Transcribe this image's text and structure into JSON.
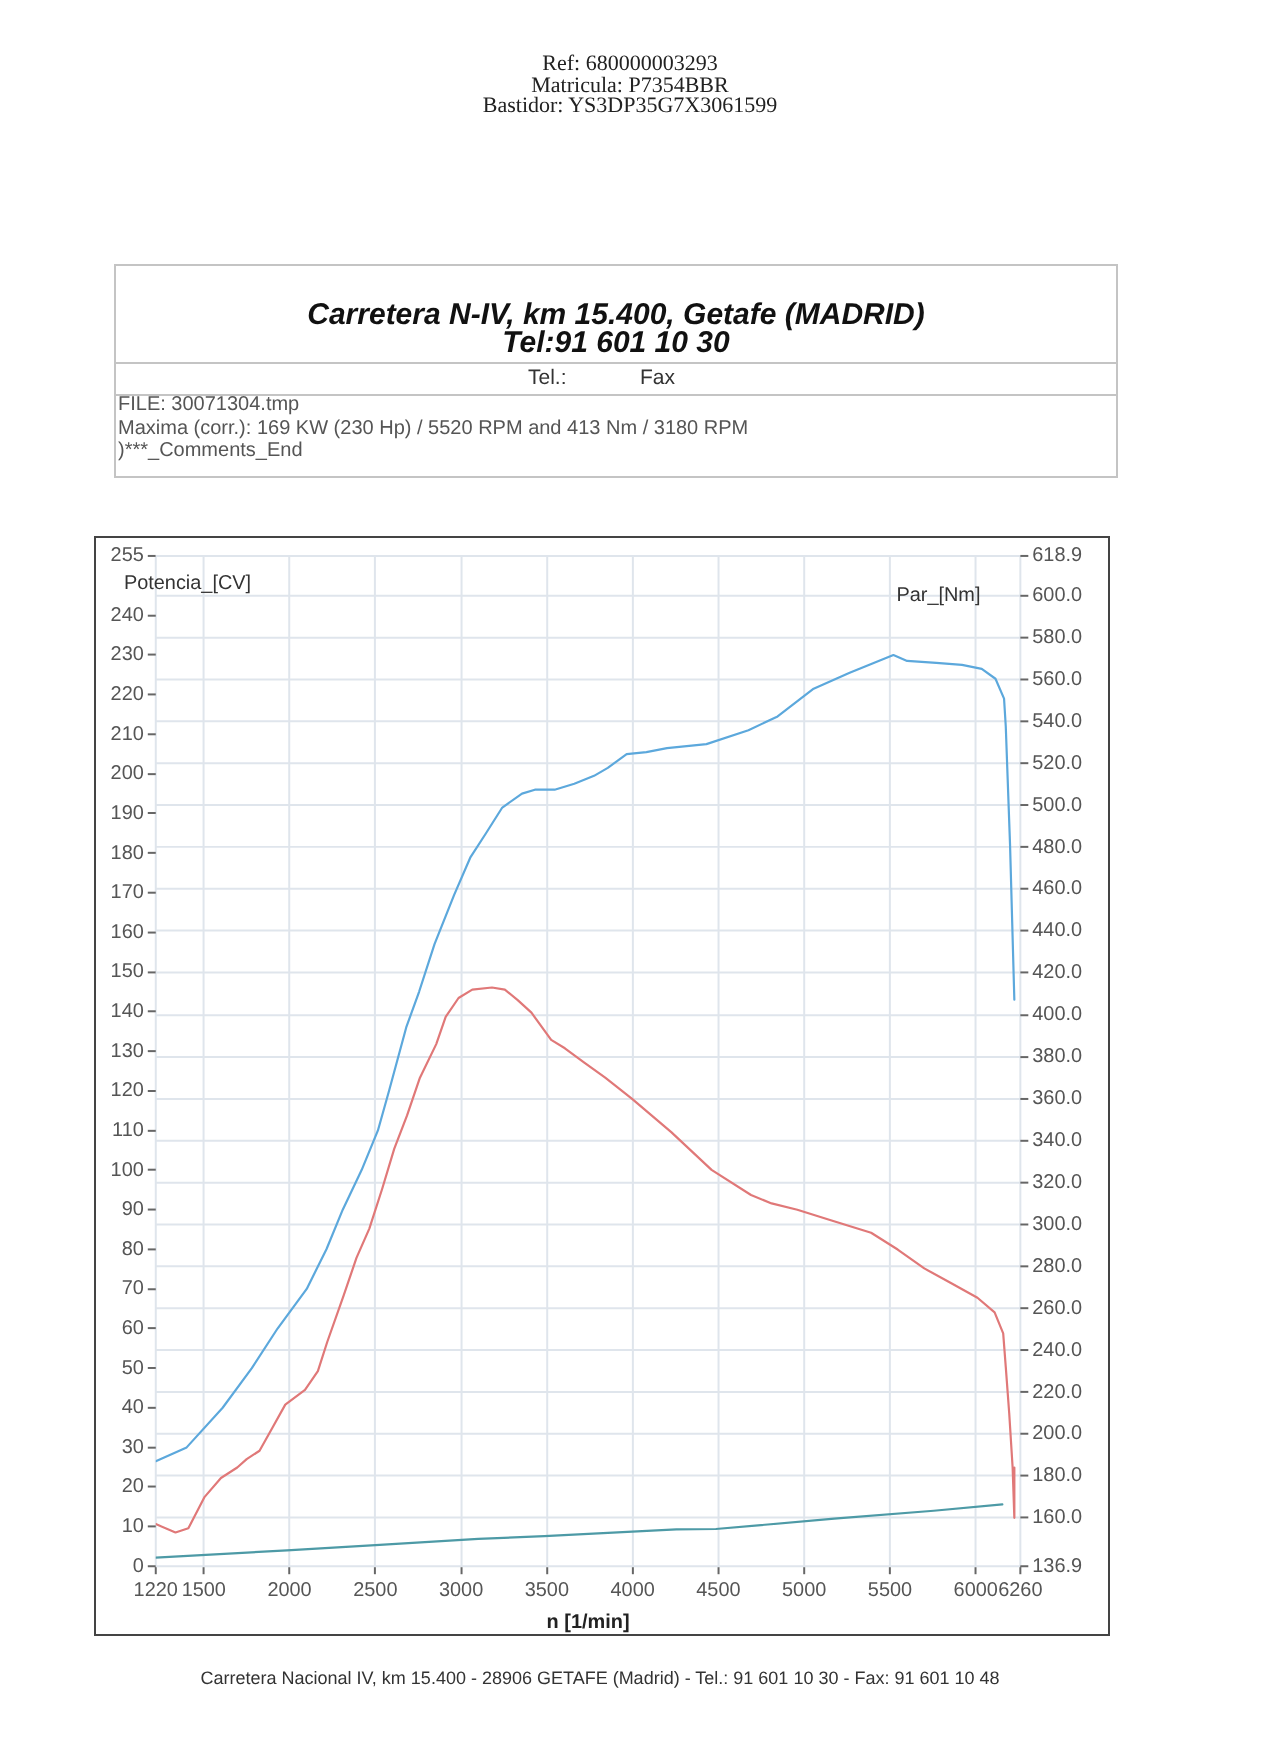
{
  "chart_data": {
    "type": "line",
    "title": "Carretera N-IV, km 15.400, Getafe (MADRID)",
    "subtitle": "Tel:91 601 10 30",
    "annotations": [
      "Ref: 680000003293",
      "Matricula: P7354BBR",
      "Bastidor: YS3DP35G7X3061599",
      "Tel.:",
      "Fax",
      "FILE: 30071304.tmp",
      "Maxima (corr.): 169 KW (230 Hp) / 5520 RPM and 413 Nm / 3180 RPM",
      ")***_Comments_End",
      "Carretera Nacional IV, km 15.400 - 28906 GETAFE (Madrid) - Tel.: 91 601 10 30 - Fax: 91 601 10 48"
    ],
    "xlabel": "n [1/min]",
    "ylabel": "Potencia_[CV]",
    "y2label": "Par_[Nm]",
    "xlim": [
      1220,
      6260
    ],
    "xticks": [
      1220,
      1500,
      2000,
      2500,
      3000,
      3500,
      4000,
      4500,
      5000,
      5500,
      6000,
      6260
    ],
    "ylim": [
      0,
      255
    ],
    "yticks": [
      0,
      10,
      20,
      30,
      40,
      50,
      60,
      70,
      80,
      90,
      100,
      110,
      120,
      130,
      140,
      150,
      160,
      170,
      180,
      190,
      200,
      210,
      220,
      230,
      240,
      255
    ],
    "y2lim": [
      136.9,
      618.9
    ],
    "y2ticks": [
      136.9,
      {
        "value": 160,
        "label": "160.0"
      },
      {
        "value": 180,
        "label": "180.0"
      },
      {
        "value": 200,
        "label": "200.0"
      },
      {
        "value": 220,
        "label": "220.0"
      },
      {
        "value": 240,
        "label": "240.0"
      },
      {
        "value": 260,
        "label": "260.0"
      },
      {
        "value": 280,
        "label": "280.0"
      },
      {
        "value": 300,
        "label": "300.0"
      },
      {
        "value": 320,
        "label": "320.0"
      },
      {
        "value": 340,
        "label": "340.0"
      },
      {
        "value": 360,
        "label": "360.0"
      },
      {
        "value": 380,
        "label": "380.0"
      },
      {
        "value": 400,
        "label": "400.0"
      },
      {
        "value": 420,
        "label": "420.0"
      },
      {
        "value": 440,
        "label": "440.0"
      },
      {
        "value": 460,
        "label": "460.0"
      },
      {
        "value": 480,
        "label": "480.0"
      },
      {
        "value": 500,
        "label": "500.0"
      },
      {
        "value": 520,
        "label": "520.0"
      },
      {
        "value": 540,
        "label": "540.0"
      },
      {
        "value": 560,
        "label": "560.0"
      },
      {
        "value": 580,
        "label": "580.0"
      },
      {
        "value": 600,
        "label": "600.0"
      },
      618.9
    ],
    "grid": true,
    "series": [
      {
        "color": "#5ca8dc",
        "x": [
          1220,
          1400,
          1610,
          1780,
          1930,
          2100,
          2215,
          2310,
          2420,
          2515,
          2580,
          2680,
          2755,
          2845,
          2960,
          3055,
          3145,
          3240,
          3355,
          3430,
          3545,
          3660,
          3775,
          3855,
          3965,
          4080,
          4200,
          4430,
          4675,
          4845,
          5055,
          5265,
          5520,
          5600,
          5770,
          5920,
          6035,
          6115,
          6165,
          6175,
          6200,
          6225
        ],
        "values": [
          26.5,
          30,
          40,
          50,
          60,
          70,
          80,
          90,
          100,
          110,
          120,
          136,
          145,
          157,
          169.5,
          179,
          185,
          191.5,
          195,
          196,
          196,
          197.5,
          199.5,
          201.5,
          205,
          205.5,
          206.5,
          207.5,
          211,
          214.5,
          221.5,
          225.5,
          230,
          228.5,
          228,
          227.5,
          226.5,
          224,
          219,
          212,
          182,
          143
        ]
      },
      {
        "color": "#e07878",
        "axis": "y2",
        "x": [
          1220,
          1335,
          1410,
          1505,
          1600,
          1695,
          1750,
          1825,
          1900,
          1975,
          2090,
          2165,
          2220,
          2315,
          2390,
          2465,
          2540,
          2610,
          2685,
          2760,
          2855,
          2910,
          2985,
          3065,
          3180,
          3255,
          3330,
          3410,
          3525,
          3605,
          3720,
          3840,
          3995,
          4225,
          4460,
          4690,
          4810,
          4960,
          5155,
          5390,
          5545,
          5700,
          5855,
          6010,
          6110,
          6160,
          6175,
          6195,
          6215,
          6225
        ],
        "values": [
          157,
          153,
          155,
          170,
          179,
          184,
          188,
          192,
          203,
          214,
          221,
          230,
          244,
          266,
          284,
          298,
          317,
          336,
          352,
          370,
          386,
          399,
          408,
          412,
          413,
          412,
          407,
          401,
          388,
          384,
          377,
          370,
          360,
          344,
          326,
          314,
          310,
          307,
          302,
          296,
          288,
          279,
          272,
          265,
          258,
          248,
          232,
          210,
          184,
          160
        ]
      },
      {
        "color": "#4d9aa6",
        "x": [
          1220,
          1985,
          2525,
          3100,
          3485,
          4255,
          4485,
          5175,
          5755,
          6155
        ],
        "values": [
          2.2,
          4,
          5.4,
          6.9,
          7.6,
          9.3,
          9.4,
          12,
          14,
          15.6
        ]
      }
    ]
  }
}
